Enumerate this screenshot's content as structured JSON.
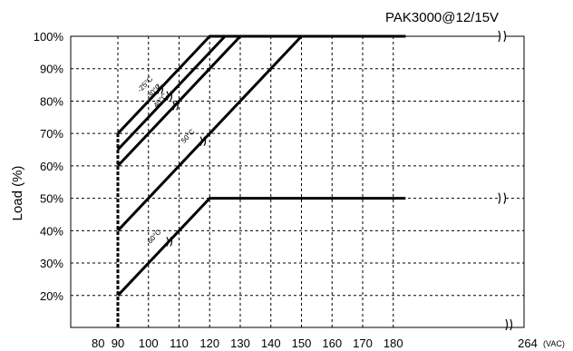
{
  "chart_data": {
    "type": "line",
    "title": "PAK3000@12/15V",
    "ylabel": "Load (%)",
    "xunit": "(VAC)",
    "xlim": [
      80,
      184
    ],
    "ylim": [
      10,
      100
    ],
    "x_ticks": [
      "80",
      "90",
      "100",
      "110",
      "120",
      "130",
      "140",
      "150",
      "160",
      "170",
      "180",
      "264"
    ],
    "y_ticks": [
      "100%",
      "90%",
      "80%",
      "70%",
      "60%",
      "50%",
      "40%",
      "30%",
      "20%"
    ],
    "y_tick_values": [
      100,
      90,
      80,
      70,
      60,
      50,
      40,
      30,
      20
    ],
    "series": [
      {
        "name": "-25°C",
        "points": [
          [
            90,
            70
          ],
          [
            120,
            100
          ],
          [
            184,
            100
          ]
        ]
      },
      {
        "name": "30°C",
        "points": [
          [
            90,
            65
          ],
          [
            125,
            100
          ],
          [
            184,
            100
          ]
        ]
      },
      {
        "name": "40°C",
        "points": [
          [
            90,
            60
          ],
          [
            130,
            100
          ],
          [
            184,
            100
          ]
        ]
      },
      {
        "name": "50°C",
        "points": [
          [
            90,
            40
          ],
          [
            150,
            100
          ],
          [
            184,
            100
          ]
        ]
      },
      {
        "name": "60°C",
        "points": [
          [
            90,
            20
          ],
          [
            120,
            50
          ],
          [
            184,
            50
          ]
        ]
      }
    ]
  }
}
